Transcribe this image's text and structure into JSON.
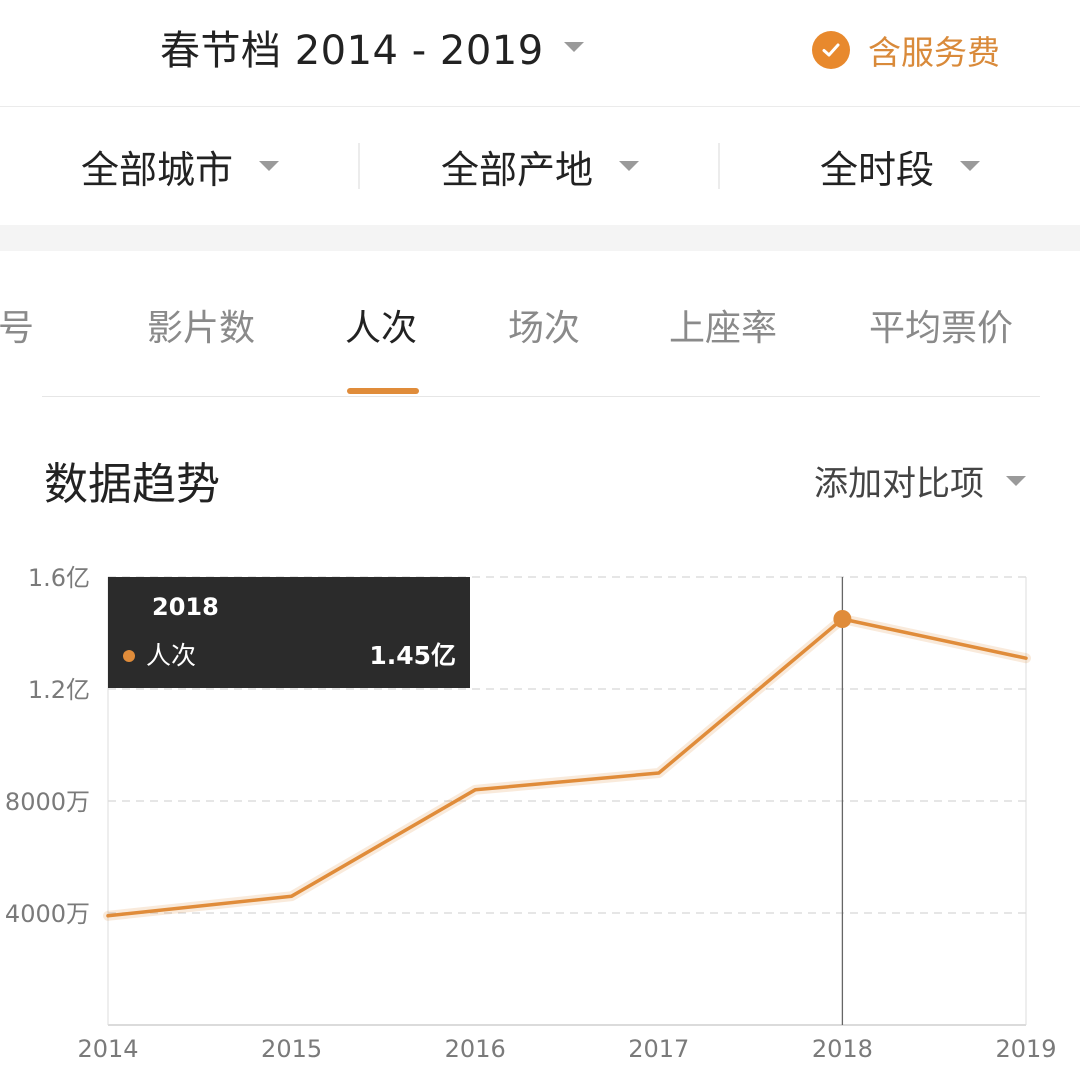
{
  "header": {
    "season_label": "春节档 2014 - 2019",
    "fee_label": "含服务费",
    "fee_checked": true,
    "accent_color": "#e8892d"
  },
  "filters": [
    {
      "label": "全部城市"
    },
    {
      "label": "全部产地"
    },
    {
      "label": "全时段"
    }
  ],
  "tabs": [
    {
      "label": "号",
      "active": false
    },
    {
      "label": "影片数",
      "active": false
    },
    {
      "label": "人次",
      "active": true
    },
    {
      "label": "场次",
      "active": false
    },
    {
      "label": "上座率",
      "active": false
    },
    {
      "label": "平均票价",
      "active": false
    }
  ],
  "section": {
    "title": "数据趋势",
    "compare_label": "添加对比项"
  },
  "chart_data": {
    "type": "line",
    "x": [
      "2014",
      "2015",
      "2016",
      "2017",
      "2018",
      "2019"
    ],
    "series": [
      {
        "name": "人次",
        "values": [
          39000000,
          46000000,
          84000000,
          90000000,
          145000000,
          131000000
        ],
        "color": "#e08c3a"
      }
    ],
    "ylim": [
      0,
      160000000
    ],
    "yticks": [
      {
        "value": 160000000,
        "label": "1.6亿"
      },
      {
        "value": 120000000,
        "label": "1.2亿"
      },
      {
        "value": 80000000,
        "label": "8000万"
      },
      {
        "value": 40000000,
        "label": "4000万"
      }
    ],
    "grid": true,
    "tooltip": {
      "x": "2018",
      "series_name": "人次",
      "value_label": "1.45亿"
    }
  }
}
